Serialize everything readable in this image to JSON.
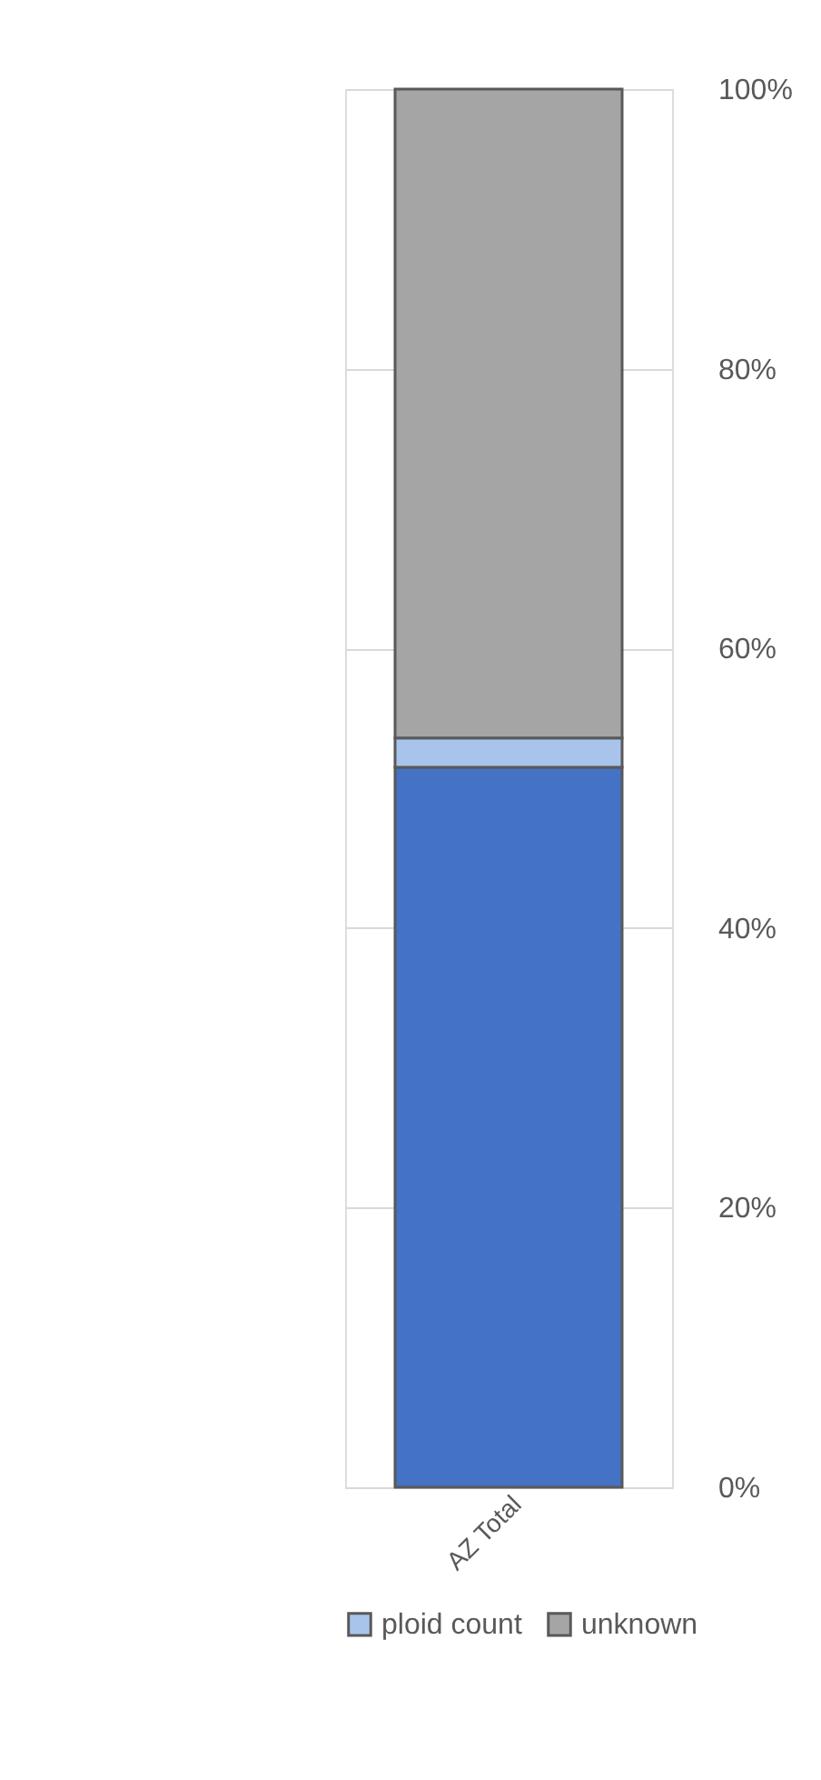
{
  "chart_data": {
    "type": "bar",
    "stacked": true,
    "categories": [
      "AZ Total"
    ],
    "series": [
      {
        "color": "#4472c4",
        "values": [
          51.5
        ]
      },
      {
        "name": "ploid count",
        "color": "#a9c4eb",
        "values": [
          2.1
        ]
      },
      {
        "name": "unknown",
        "color": "#a5a5a5",
        "values": [
          46.4
        ]
      }
    ],
    "ylim": [
      0,
      100
    ],
    "yticks": [
      {
        "value": 0,
        "label": "0%"
      },
      {
        "value": 20,
        "label": "20%"
      },
      {
        "value": 40,
        "label": "40%"
      },
      {
        "value": 60,
        "label": "60%"
      },
      {
        "value": 80,
        "label": "80%"
      },
      {
        "value": 100,
        "label": "100%"
      }
    ],
    "grid": "y",
    "legend": "bottom"
  }
}
